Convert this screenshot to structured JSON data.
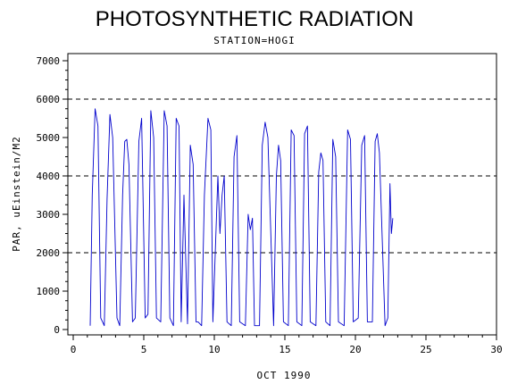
{
  "chart_data": {
    "type": "line",
    "title": "PHOTOSYNTHETIC RADIATION",
    "subtitle": "STATION=HOGI",
    "xlabel": "OCT 1990",
    "ylabel": "PAR, uEinstein/M2",
    "xlim": [
      0,
      30
    ],
    "ylim": [
      0,
      7000
    ],
    "xticks": [
      0,
      5,
      10,
      15,
      20,
      25,
      30
    ],
    "yticks": [
      0,
      1000,
      2000,
      3000,
      4000,
      5000,
      6000,
      7000
    ],
    "reference_lines": [
      2000,
      4000,
      6000
    ],
    "line_color": "#0000cc",
    "series": [
      {
        "x": [
          1.2,
          1.35,
          1.55,
          1.75,
          1.95,
          2.2,
          2.4,
          2.6,
          2.8,
          3.1,
          3.3,
          3.5,
          3.65,
          3.8,
          3.95,
          4.2,
          4.4,
          4.65,
          4.85,
          5.1,
          5.3,
          5.5,
          5.7,
          5.9,
          6.2,
          6.45,
          6.65,
          6.85,
          7.1,
          7.3,
          7.5,
          7.65,
          7.85,
          8.1,
          8.3,
          8.5,
          8.7,
          8.85,
          9.1,
          9.3,
          9.55,
          9.75,
          9.9,
          10.25,
          10.4,
          10.55,
          10.7,
          10.9,
          11.2,
          11.4,
          11.6,
          11.8,
          12.2,
          12.4,
          12.55,
          12.7,
          12.85,
          13.2,
          13.4,
          13.6,
          13.8,
          14.2,
          14.4,
          14.55,
          14.7,
          14.9,
          15.25,
          15.45,
          15.65,
          15.85,
          16.2,
          16.4,
          16.6,
          16.8,
          17.2,
          17.4,
          17.55,
          17.7,
          17.9,
          18.2,
          18.4,
          18.6,
          18.8,
          19.2,
          19.45,
          19.65,
          19.85,
          20.2,
          20.45,
          20.65,
          20.85,
          21.2,
          21.4,
          21.55,
          21.7,
          22.1,
          22.3,
          22.45,
          22.55,
          22.65
        ],
        "y": [
          100,
          3500,
          5750,
          5300,
          300,
          100,
          3400,
          5600,
          5000,
          300,
          100,
          3500,
          4900,
          4950,
          4300,
          200,
          300,
          4900,
          5500,
          300,
          400,
          5700,
          5000,
          300,
          200,
          5700,
          5300,
          300,
          100,
          5500,
          5300,
          200,
          3500,
          150,
          4800,
          4300,
          200,
          200,
          100,
          3500,
          5500,
          5200,
          200,
          4000,
          2500,
          3500,
          4000,
          200,
          100,
          4500,
          5050,
          200,
          100,
          3000,
          2600,
          2900,
          100,
          100,
          4800,
          5400,
          5000,
          100,
          4000,
          4800,
          4400,
          200,
          100,
          5200,
          5050,
          200,
          100,
          5100,
          5300,
          200,
          100,
          4100,
          4600,
          4400,
          200,
          100,
          4950,
          4500,
          200,
          100,
          5200,
          4950,
          200,
          300,
          4800,
          5050,
          200,
          200,
          4900,
          5100,
          4600,
          100,
          300,
          3800,
          2500,
          2900
        ]
      }
    ]
  }
}
